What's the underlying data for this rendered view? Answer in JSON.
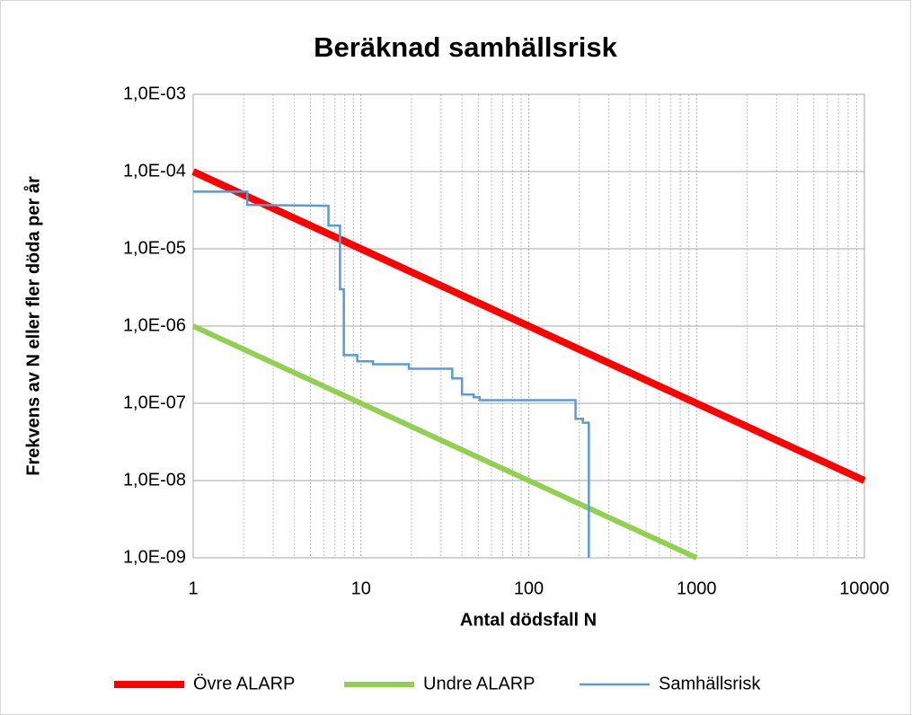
{
  "chart_data": {
    "type": "line",
    "title": "Beräknad samhällsrisk",
    "x_label": "Antal dödsfall N",
    "y_label": "Frekvens av N eller fler döda per år",
    "x_log": true,
    "y_log": true,
    "grid": true,
    "legend": "bottom",
    "xlim": [
      1,
      10000
    ],
    "xticks": [
      1,
      10,
      100,
      1000,
      10000
    ],
    "ylim": [
      1e-09,
      0.001
    ],
    "yticks": [
      {
        "value": 1e-09,
        "label": "1,0E-09"
      },
      {
        "value": 1e-08,
        "label": "1,0E-08"
      },
      {
        "value": 1e-07,
        "label": "1,0E-07"
      },
      {
        "value": 1e-06,
        "label": "1,0E-06"
      },
      {
        "value": 1e-05,
        "label": "1,0E-05"
      },
      {
        "value": 0.0001,
        "label": "1,0E-04"
      },
      {
        "value": 0.001,
        "label": "1,0E-03"
      }
    ],
    "series": [
      {
        "name": "Övre ALARP",
        "color": "#ff0000",
        "x": [
          1,
          10000
        ],
        "values": [
          0.0001,
          1e-08
        ]
      },
      {
        "name": "Undre ALARP",
        "color": "#92d050",
        "x": [
          1,
          1000
        ],
        "values": [
          1e-06,
          1e-09
        ]
      },
      {
        "name": "Samhällsrisk",
        "color": "#5b9bd5",
        "x": [
          1,
          2.1,
          2.1,
          6.4,
          6.4,
          7.5,
          7.5,
          7.9,
          7.9,
          9.5,
          9.5,
          11.8,
          11.8,
          19.3,
          19.3,
          35,
          35,
          40,
          40,
          47,
          47,
          51,
          51,
          190,
          190,
          210,
          210,
          228,
          228
        ],
        "values": [
          5.5e-05,
          5.5e-05,
          3.7e-05,
          3.6e-05,
          2e-05,
          2e-05,
          3e-06,
          3e-06,
          4.2e-07,
          4.2e-07,
          3.5e-07,
          3.5e-07,
          3.2e-07,
          3.2e-07,
          2.8e-07,
          2.8e-07,
          2.1e-07,
          2.1e-07,
          1.3e-07,
          1.3e-07,
          1.2e-07,
          1.2e-07,
          1.1e-07,
          1.1e-07,
          6.3e-08,
          6.3e-08,
          5.6e-08,
          5.6e-08,
          1e-09
        ]
      }
    ]
  }
}
